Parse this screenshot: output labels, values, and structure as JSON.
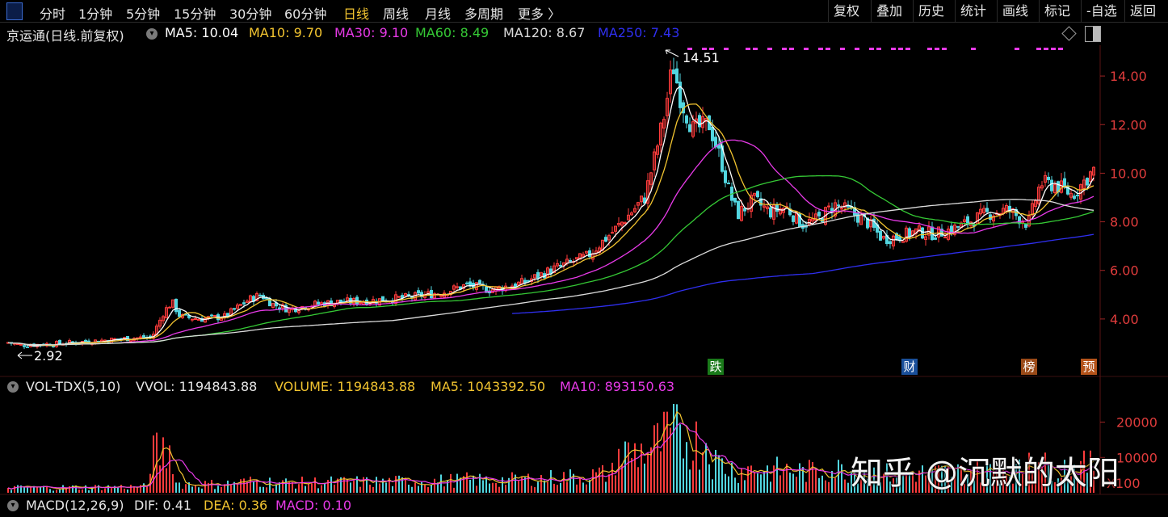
{
  "toolbar": {
    "periods": [
      "分时",
      "1分钟",
      "5分钟",
      "15分钟",
      "30分钟",
      "60分钟",
      "日线",
      "周线",
      "月线",
      "多周期",
      "更多 〉"
    ],
    "active_period": "日线",
    "right_buttons": [
      "复权",
      "叠加",
      "历史",
      "统计",
      "画线",
      "标记",
      "-自选",
      "返回"
    ]
  },
  "chart_header": {
    "title": "京运通(日线.前复权)",
    "ma": [
      {
        "label": "MA5: 10.04",
        "color": "#ffffff"
      },
      {
        "label": "MA10: 9.70",
        "color": "#f2c430"
      },
      {
        "label": "MA30: 9.10",
        "color": "#e83ae8"
      },
      {
        "label": "MA60: 8.49",
        "color": "#35c935"
      },
      {
        "label": "MA120: 8.67",
        "color": "#dcdcdc"
      },
      {
        "label": "MA250: 7.43",
        "color": "#2f2ff0"
      }
    ]
  },
  "price_axis": {
    "ticks": [
      "14.00",
      "12.00",
      "10.00",
      "8.00",
      "6.00",
      "4.00"
    ],
    "color": "#e03c3c"
  },
  "annotations": {
    "high": "14.51",
    "low": "2.92"
  },
  "event_markers": [
    {
      "label": "跌",
      "color": "#1a7a1a"
    },
    {
      "label": "财",
      "color": "#1a4f9a"
    },
    {
      "label": "榜",
      "color": "#9a4a18"
    },
    {
      "label": "预",
      "color": "#b5531a"
    }
  ],
  "volume_panel": {
    "indicator": "VOL-TDX(5,10)",
    "vvol": "VVOL: 1194843.88",
    "volume": "VOLUME: 1194843.88",
    "ma5": "MA5: 1043392.50",
    "ma10": "MA10: 893150.63",
    "axis_ticks": [
      "20000",
      "10000"
    ],
    "unit": "X100"
  },
  "macd_panel": {
    "indicator": "MACD(12,26,9)",
    "dif": "DIF: 0.41",
    "dea": "DEA: 0.36",
    "macd": "MACD: 0.10"
  },
  "watermark": "知乎 @沉默的太阳",
  "chart_data": {
    "type": "candlestick",
    "title": "京运通(日线.前复权)",
    "ylim": [
      2.5,
      15.2
    ],
    "price_path": [
      [
        0,
        3.05
      ],
      [
        18,
        2.92
      ],
      [
        60,
        2.98
      ],
      [
        110,
        3.1
      ],
      [
        150,
        3.2
      ],
      [
        180,
        3.25
      ],
      [
        195,
        4.3
      ],
      [
        205,
        4.7
      ],
      [
        215,
        4.1
      ],
      [
        240,
        4.0
      ],
      [
        270,
        4.1
      ],
      [
        300,
        4.8
      ],
      [
        315,
        5.0
      ],
      [
        330,
        4.6
      ],
      [
        350,
        4.4
      ],
      [
        380,
        4.6
      ],
      [
        410,
        4.7
      ],
      [
        450,
        4.75
      ],
      [
        500,
        4.9
      ],
      [
        540,
        5.1
      ],
      [
        570,
        5.4
      ],
      [
        600,
        5.2
      ],
      [
        640,
        5.5
      ],
      [
        680,
        6.1
      ],
      [
        720,
        6.6
      ],
      [
        760,
        7.9
      ],
      [
        790,
        9.0
      ],
      [
        805,
        11.0
      ],
      [
        815,
        12.5
      ],
      [
        825,
        14.51
      ],
      [
        835,
        13.0
      ],
      [
        850,
        11.8
      ],
      [
        870,
        12.0
      ],
      [
        885,
        10.5
      ],
      [
        895,
        9.2
      ],
      [
        905,
        8.3
      ],
      [
        925,
        8.9
      ],
      [
        945,
        8.4
      ],
      [
        965,
        8.6
      ],
      [
        985,
        7.9
      ],
      [
        1005,
        8.1
      ],
      [
        1025,
        8.7
      ],
      [
        1045,
        8.4
      ],
      [
        1065,
        8.0
      ],
      [
        1085,
        7.3
      ],
      [
        1105,
        7.4
      ],
      [
        1125,
        7.6
      ],
      [
        1150,
        7.5
      ],
      [
        1180,
        7.8
      ],
      [
        1210,
        8.3
      ],
      [
        1240,
        8.5
      ],
      [
        1265,
        7.9
      ],
      [
        1280,
        9.6
      ],
      [
        1300,
        9.5
      ],
      [
        1320,
        9.1
      ],
      [
        1335,
        9.7
      ],
      [
        1350,
        10.3
      ]
    ],
    "ma_latest": {
      "MA5": 10.04,
      "MA10": 9.7,
      "MA30": 9.1,
      "MA60": 8.49,
      "MA120": 8.67,
      "MA250": 7.43
    },
    "volume_ylim": [
      0,
      27000
    ],
    "macd_latest": {
      "DIF": 0.41,
      "DEA": 0.36,
      "MACD": 0.1
    }
  }
}
